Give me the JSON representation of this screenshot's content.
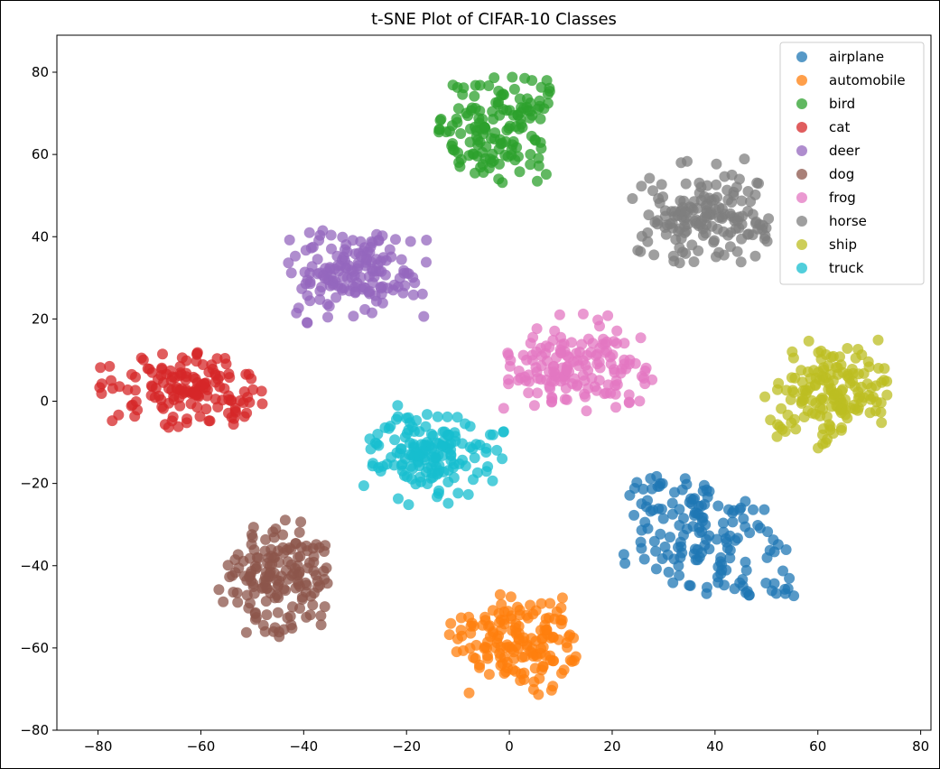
{
  "chart_data": {
    "type": "scatter",
    "title": "t-SNE Plot of CIFAR-10 Classes",
    "xlim": [
      -88,
      82
    ],
    "ylim": [
      -80,
      89
    ],
    "xticks": [
      -80,
      -60,
      -40,
      -20,
      0,
      20,
      40,
      60,
      80
    ],
    "yticks": [
      -80,
      -60,
      -40,
      -20,
      0,
      20,
      40,
      60,
      80
    ],
    "grid": false,
    "legend_position": "top-right",
    "point_alpha": 0.75,
    "series": [
      {
        "name": "airplane",
        "color": "#1f77b4",
        "center": [
          38,
          -34
        ],
        "spread": [
          9,
          8
        ],
        "count": 160,
        "bounds": {
          "x": [
            22,
            56
          ],
          "y": [
            -48,
            -18
          ]
        }
      },
      {
        "name": "automobile",
        "color": "#ff7f0e",
        "center": [
          3,
          -59
        ],
        "spread": [
          7.5,
          6
        ],
        "count": 160,
        "bounds": {
          "x": [
            -12,
            13
          ],
          "y": [
            -72,
            -46
          ]
        }
      },
      {
        "name": "bird",
        "color": "#2ca02c",
        "center": [
          -2,
          66
        ],
        "spread": [
          6,
          7
        ],
        "count": 150,
        "bounds": {
          "x": [
            -15,
            8
          ],
          "y": [
            53,
            81
          ]
        }
      },
      {
        "name": "cat",
        "color": "#d62728",
        "center": [
          -62,
          2
        ],
        "spread": [
          9,
          4.5
        ],
        "count": 150,
        "bounds": {
          "x": [
            -81,
            -48
          ],
          "y": [
            -7,
            14
          ]
        }
      },
      {
        "name": "deer",
        "color": "#9467bd",
        "center": [
          -30,
          31
        ],
        "spread": [
          7.5,
          5.5
        ],
        "count": 160,
        "bounds": {
          "x": [
            -43,
            -16
          ],
          "y": [
            18,
            42
          ]
        }
      },
      {
        "name": "dog",
        "color": "#8c564b",
        "center": [
          -45,
          -43
        ],
        "spread": [
          6,
          7
        ],
        "count": 160,
        "bounds": {
          "x": [
            -58,
            -35
          ],
          "y": [
            -58,
            -28
          ]
        }
      },
      {
        "name": "frog",
        "color": "#e377c2",
        "center": [
          13,
          7
        ],
        "spread": [
          7.5,
          5.5
        ],
        "count": 160,
        "bounds": {
          "x": [
            -3,
            28
          ],
          "y": [
            -4,
            23
          ]
        }
      },
      {
        "name": "horse",
        "color": "#7f7f7f",
        "center": [
          38,
          45
        ],
        "spread": [
          7.5,
          5.5
        ],
        "count": 160,
        "bounds": {
          "x": [
            23,
            51
          ],
          "y": [
            33,
            60
          ]
        }
      },
      {
        "name": "ship",
        "color": "#bcbd22",
        "center": [
          62,
          2
        ],
        "spread": [
          6,
          6
        ],
        "count": 160,
        "bounds": {
          "x": [
            49,
            75
          ],
          "y": [
            -12,
            17
          ]
        }
      },
      {
        "name": "truck",
        "color": "#17becf",
        "center": [
          -15,
          -12
        ],
        "spread": [
          7,
          5.5
        ],
        "count": 160,
        "bounds": {
          "x": [
            -29,
            -1
          ],
          "y": [
            -27,
            0
          ]
        }
      }
    ]
  }
}
